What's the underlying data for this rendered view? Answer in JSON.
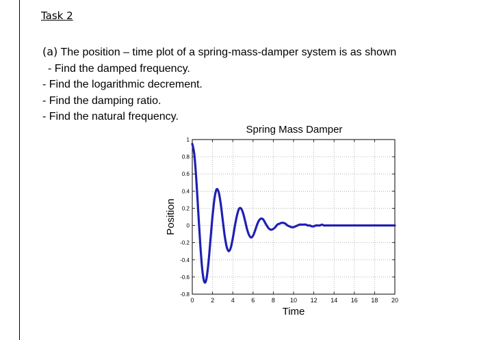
{
  "task_heading": "Task 2",
  "question": {
    "prefix": "(a)",
    "intro": "The position – time plot of a spring-mass-damper system is as shown",
    "items": [
      "- Find the damped frequency.",
      "- Find the logarithmic decrement.",
      "- Find the damping ratio.",
      "- Find the natural frequency."
    ]
  },
  "chart_data": {
    "type": "line",
    "title": "Spring Mass Damper",
    "xlabel": "Time",
    "ylabel": "Position",
    "xlim": [
      0,
      20
    ],
    "ylim": [
      -0.8,
      1
    ],
    "xticks": [
      0,
      2,
      4,
      6,
      8,
      10,
      12,
      14,
      16,
      18,
      20
    ],
    "yticks": [
      -0.8,
      -0.6,
      -0.4,
      -0.2,
      0,
      0.2,
      0.4,
      0.6,
      0.8,
      1
    ],
    "xtick_labels": [
      "0",
      "2",
      "4",
      "6",
      "8",
      "10",
      "12",
      "14",
      "16",
      "18",
      "20"
    ],
    "ytick_labels": [
      "-0.8",
      "-0.6",
      "-0.4",
      "-0.2",
      "0",
      "0.2",
      "0.4",
      "0.6",
      "0.8",
      "1"
    ],
    "grid": true,
    "line_color": "#1f1fb4",
    "series": [
      {
        "x": [
          0,
          0.2,
          0.4,
          0.6,
          0.8,
          1.0,
          1.2,
          1.4,
          1.6,
          1.8,
          2.0,
          2.2,
          2.4,
          2.6,
          2.8,
          3.0,
          3.2,
          3.4,
          3.6,
          3.8,
          4.0,
          4.2,
          4.4,
          4.6,
          4.8,
          5.0,
          5.2,
          5.4,
          5.6,
          5.8,
          6.0,
          6.2,
          6.4,
          6.6,
          6.8,
          7.0,
          7.2,
          7.4,
          7.6,
          7.8,
          8.0,
          8.2,
          8.4,
          8.6,
          8.8,
          9.0,
          9.2,
          9.4,
          9.6,
          9.8,
          10.0,
          10.2,
          10.4,
          10.6,
          10.8,
          11.0,
          11.2,
          11.4,
          11.6,
          11.8,
          12.0,
          12.2,
          12.4,
          12.6,
          12.8,
          13.0,
          13.2,
          13.4,
          13.6,
          13.8,
          14.0,
          14.2,
          14.4,
          14.6,
          14.8,
          15.0,
          15.2,
          15.4,
          15.6,
          15.8,
          16.0,
          16.2,
          16.4,
          16.6,
          16.8,
          17.0,
          17.2,
          17.4,
          17.6,
          17.8,
          18.0,
          18.2,
          18.4,
          18.6,
          18.8,
          19.0,
          19.2,
          19.4,
          19.6,
          19.8,
          20.0
        ],
        "y": [
          0.95,
          0.83,
          0.53,
          0.14,
          -0.24,
          -0.53,
          -0.66,
          -0.62,
          -0.43,
          -0.16,
          0.11,
          0.32,
          0.42,
          0.39,
          0.26,
          0.07,
          -0.12,
          -0.25,
          -0.3,
          -0.26,
          -0.15,
          -0.01,
          0.11,
          0.19,
          0.2,
          0.15,
          0.06,
          -0.04,
          -0.11,
          -0.14,
          -0.12,
          -0.06,
          0.01,
          0.06,
          0.08,
          0.07,
          0.03,
          -0.01,
          -0.04,
          -0.05,
          -0.04,
          -0.02,
          0.01,
          0.02,
          0.03,
          0.03,
          0.02,
          0.0,
          -0.01,
          -0.02,
          -0.02,
          -0.01,
          0.0,
          0.01,
          0.01,
          0.01,
          0.01,
          0.0,
          0.0,
          -0.01,
          -0.01,
          0.0,
          0.0,
          0.0,
          0.01,
          0.0,
          0.0,
          0.0,
          0.0,
          0.0,
          0.0,
          0.0,
          0.0,
          0.0,
          0.0,
          0.0,
          0.0,
          0.0,
          0.0,
          0.0,
          0.0,
          0.0,
          0.0,
          0.0,
          0.0,
          0.0,
          0.0,
          0.0,
          0.0,
          0.0,
          0.0,
          0.0,
          0.0,
          0.0,
          0.0,
          0.0,
          0.0,
          0.0,
          0.0,
          0.0,
          0.0
        ]
      }
    ]
  }
}
